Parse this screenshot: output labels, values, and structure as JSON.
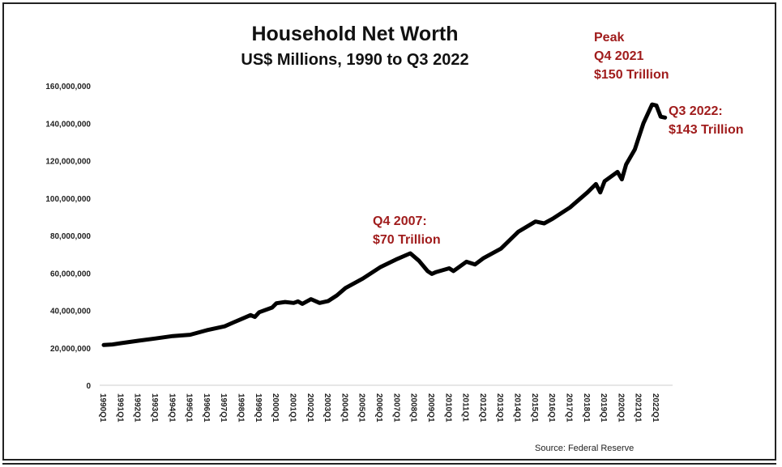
{
  "chart_data": {
    "type": "line",
    "title": "Household Net Worth",
    "subtitle": "US$ Millions, 1990 to Q3 2022",
    "xlabel": "",
    "ylabel": "",
    "ylim": [
      0,
      160000000
    ],
    "yticks": [
      "0",
      "20,000,000",
      "40,000,000",
      "60,000,000",
      "80,000,000",
      "100,000,000",
      "120,000,000",
      "140,000,000",
      "160,000,000"
    ],
    "xticks": [
      "1990Q1",
      "1991Q1",
      "1992Q1",
      "1993Q1",
      "1994Q1",
      "1995Q1",
      "1996Q1",
      "1997Q1",
      "1998Q1",
      "1999Q1",
      "2000Q1",
      "2001Q1",
      "2002Q1",
      "2003Q1",
      "2004Q1",
      "2005Q1",
      "2006Q1",
      "2007Q1",
      "2008Q1",
      "2009Q1",
      "2010Q1",
      "2011Q1",
      "2012Q1",
      "2013Q1",
      "2014Q1",
      "2015Q1",
      "2016Q1",
      "2017Q1",
      "2018Q1",
      "2019Q1",
      "2020Q1",
      "2021Q1",
      "2022Q1"
    ],
    "grid": false,
    "line_color": "#000000",
    "series": [
      {
        "points": [
          [
            "1990Q1",
            21500000
          ],
          [
            "1990Q3",
            21800000
          ],
          [
            "1991Q1",
            22500000
          ],
          [
            "1992Q1",
            23800000
          ],
          [
            "1993Q1",
            25000000
          ],
          [
            "1994Q1",
            26300000
          ],
          [
            "1995Q1",
            27000000
          ],
          [
            "1996Q1",
            29500000
          ],
          [
            "1997Q1",
            31500000
          ],
          [
            "1997Q3",
            33500000
          ],
          [
            "1998Q1",
            35500000
          ],
          [
            "1998Q3",
            37500000
          ],
          [
            "1998Q4",
            36500000
          ],
          [
            "1999Q1",
            39000000
          ],
          [
            "1999Q4",
            41500000
          ],
          [
            "2000Q1",
            43800000
          ],
          [
            "2000Q3",
            44500000
          ],
          [
            "2001Q1",
            44000000
          ],
          [
            "2001Q2",
            44800000
          ],
          [
            "2001Q3",
            43500000
          ],
          [
            "2002Q1",
            46000000
          ],
          [
            "2002Q3",
            44000000
          ],
          [
            "2003Q1",
            45000000
          ],
          [
            "2003Q3",
            48000000
          ],
          [
            "2004Q1",
            52000000
          ],
          [
            "2005Q1",
            57000000
          ],
          [
            "2006Q1",
            63000000
          ],
          [
            "2007Q1",
            67500000
          ],
          [
            "2007Q4",
            70500000
          ],
          [
            "2008Q2",
            66500000
          ],
          [
            "2008Q4",
            61000000
          ],
          [
            "2009Q1",
            59500000
          ],
          [
            "2009Q2",
            60500000
          ],
          [
            "2010Q1",
            62500000
          ],
          [
            "2010Q2",
            61000000
          ],
          [
            "2011Q1",
            66000000
          ],
          [
            "2011Q3",
            64500000
          ],
          [
            "2012Q1",
            68000000
          ],
          [
            "2013Q1",
            73000000
          ],
          [
            "2014Q1",
            82000000
          ],
          [
            "2015Q1",
            87500000
          ],
          [
            "2015Q3",
            86500000
          ],
          [
            "2016Q1",
            89000000
          ],
          [
            "2017Q1",
            95000000
          ],
          [
            "2018Q1",
            103000000
          ],
          [
            "2018Q3",
            107500000
          ],
          [
            "2018Q4",
            103000000
          ],
          [
            "2019Q1",
            109000000
          ],
          [
            "2019Q4",
            114000000
          ],
          [
            "2020Q1",
            110000000
          ],
          [
            "2020Q2",
            118000000
          ],
          [
            "2020Q4",
            126000000
          ],
          [
            "2021Q1",
            133000000
          ],
          [
            "2021Q2",
            140000000
          ],
          [
            "2021Q4",
            150000000
          ],
          [
            "2022Q1",
            149500000
          ],
          [
            "2022Q2",
            143500000
          ],
          [
            "2022Q3",
            143000000
          ]
        ]
      }
    ],
    "annotations": [
      {
        "text": "Q4 2007:\n$70 Trillion",
        "at": "2007Q4"
      },
      {
        "text": "Peak\nQ4 2021\n$150 Trillion",
        "at": "2021Q4"
      },
      {
        "text": "Q3 2022:\n$143 Trillion",
        "at": "2022Q3"
      }
    ],
    "annotation_color": "#a01c1c",
    "source": "Source: Federal Reserve"
  }
}
